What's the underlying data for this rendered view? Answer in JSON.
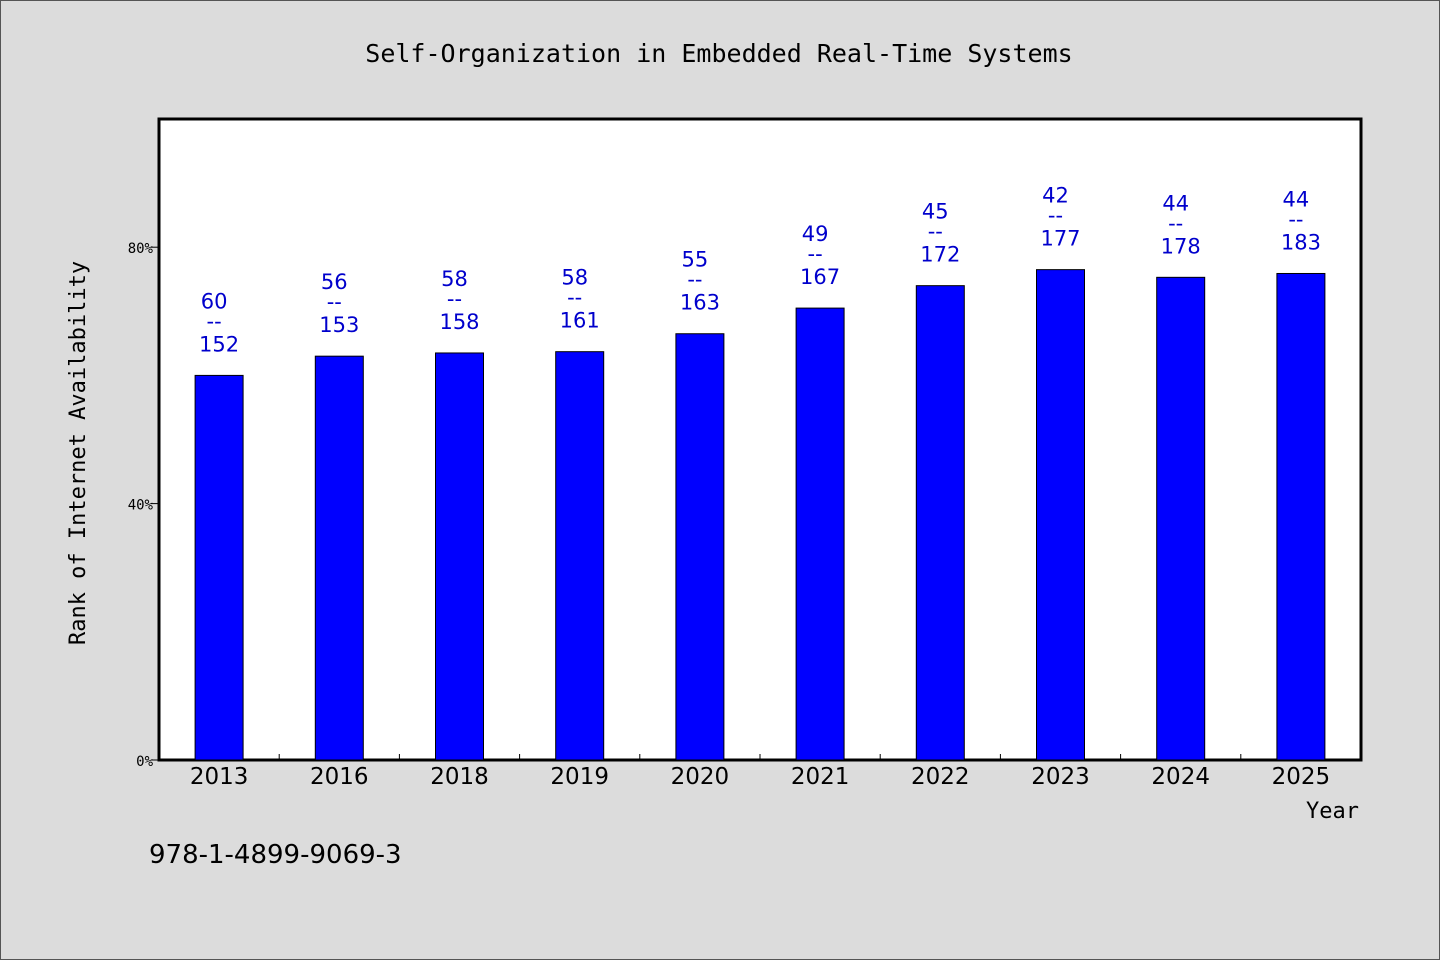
{
  "chart_data": {
    "type": "bar",
    "title": "Self-Organization in Embedded Real-Time Systems",
    "xlabel": "Year",
    "ylabel": "Rank of Internet Availability",
    "ylim": [
      0,
      100
    ],
    "yticks": [
      {
        "value": 0,
        "label": "0%"
      },
      {
        "value": 40,
        "label": "40%"
      },
      {
        "value": 80,
        "label": "80%"
      }
    ],
    "grid": false,
    "categories": [
      "2013",
      "2016",
      "2018",
      "2019",
      "2020",
      "2021",
      "2022",
      "2023",
      "2024",
      "2025"
    ],
    "values": [
      60.0,
      63.0,
      63.5,
      63.7,
      66.5,
      70.5,
      74.0,
      76.5,
      75.3,
      75.9
    ],
    "labels": [
      {
        "rank": "60",
        "sep": "--",
        "total": "152"
      },
      {
        "rank": "56",
        "sep": "--",
        "total": "153"
      },
      {
        "rank": "58",
        "sep": "--",
        "total": "158"
      },
      {
        "rank": "58",
        "sep": "--",
        "total": "161"
      },
      {
        "rank": "55",
        "sep": "--",
        "total": "163"
      },
      {
        "rank": "49",
        "sep": "--",
        "total": "167"
      },
      {
        "rank": "45",
        "sep": "--",
        "total": "172"
      },
      {
        "rank": "42",
        "sep": "--",
        "total": "177"
      },
      {
        "rank": "44",
        "sep": "--",
        "total": "178"
      },
      {
        "rank": "44",
        "sep": "--",
        "total": "183"
      }
    ],
    "bar_color": "#0000ff",
    "label_color": "#0000cc"
  },
  "footer_isbn": "978-1-4899-9069-3"
}
